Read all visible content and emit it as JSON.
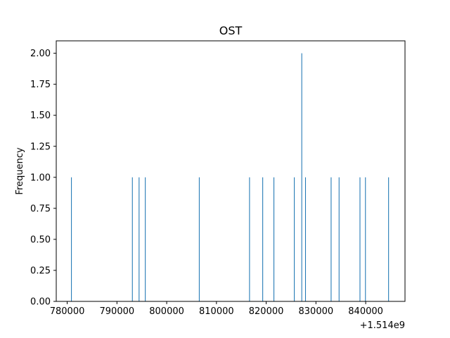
{
  "chart_data": {
    "type": "bar",
    "title": "OST",
    "xlabel": "",
    "ylabel": "Frequency",
    "x_offset_label": "+1.514e9",
    "xlim": [
      777800,
      847900
    ],
    "ylim": [
      0,
      2.1
    ],
    "bin_width": 150,
    "xticks": [
      780000,
      790000,
      800000,
      810000,
      820000,
      830000,
      840000
    ],
    "xtick_labels": [
      "780000",
      "790000",
      "800000",
      "810000",
      "820000",
      "830000",
      "840000"
    ],
    "yticks": [
      0,
      0.25,
      0.5,
      0.75,
      1.0,
      1.25,
      1.5,
      1.75,
      2.0
    ],
    "ytick_labels": [
      "0.00",
      "0.25",
      "0.50",
      "0.75",
      "1.00",
      "1.25",
      "1.50",
      "1.75",
      "2.00"
    ],
    "bars": [
      {
        "x": 780850,
        "value": 1
      },
      {
        "x": 793100,
        "value": 1
      },
      {
        "x": 794450,
        "value": 1
      },
      {
        "x": 795700,
        "value": 1
      },
      {
        "x": 806550,
        "value": 1
      },
      {
        "x": 816650,
        "value": 1
      },
      {
        "x": 819300,
        "value": 1
      },
      {
        "x": 821550,
        "value": 1
      },
      {
        "x": 825650,
        "value": 1
      },
      {
        "x": 827150,
        "value": 2
      },
      {
        "x": 827900,
        "value": 1
      },
      {
        "x": 833050,
        "value": 1
      },
      {
        "x": 834650,
        "value": 1
      },
      {
        "x": 838850,
        "value": 1
      },
      {
        "x": 839950,
        "value": 1
      },
      {
        "x": 844600,
        "value": 1
      }
    ],
    "bar_color": "#1f77b4"
  }
}
